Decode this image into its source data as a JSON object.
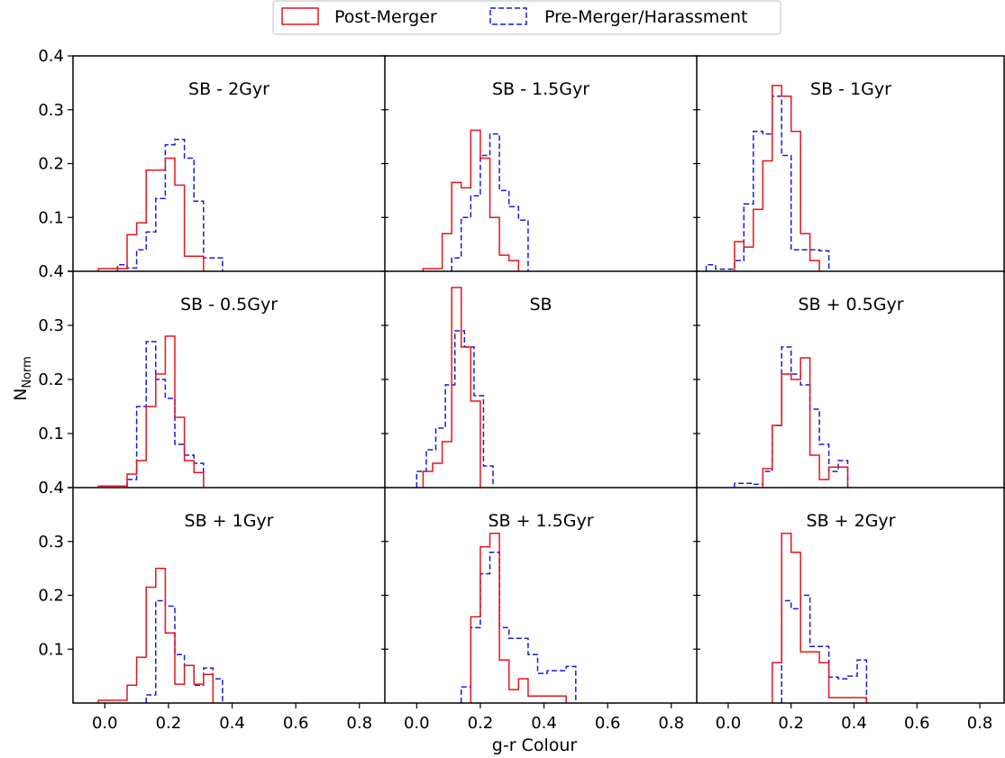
{
  "figure": {
    "xlabel": "g-r Colour",
    "ylabel_main": "N",
    "ylabel_sub": "Norm"
  },
  "legend": {
    "entries": [
      {
        "label": "Post-Merger",
        "color": "#e8141c",
        "style": "solid"
      },
      {
        "label": "Pre-Merger/Harassment",
        "color": "#1a1adc",
        "style": "dashed"
      }
    ]
  },
  "chart_data": {
    "type": "histogram-grid",
    "rows": 3,
    "cols": 3,
    "xlim": [
      -0.1,
      0.88
    ],
    "ylim": [
      0.0,
      0.4
    ],
    "xticks": [
      0.0,
      0.2,
      0.4,
      0.6,
      0.8
    ],
    "xtick_labels": [
      "0.0",
      "0.2",
      "0.4",
      "0.6",
      "0.8"
    ],
    "yticks": [
      0.1,
      0.2,
      0.3,
      0.4
    ],
    "ytick_labels_top_row": [
      "0.1",
      "0.2",
      "0.3",
      "0.4"
    ],
    "ytick_labels_lower_rows": [
      "0.1",
      "0.2",
      "0.3",
      "0.4"
    ],
    "ytick_label_at_zero": "0.4",
    "bin_width": 0.03,
    "panels": [
      {
        "title": "SB - 2Gyr",
        "post": {
          "start": -0.02,
          "values": [
            0.005,
            0.005,
            0.005,
            0.068,
            0.09,
            0.188,
            0.188,
            0.21,
            0.16,
            0.028,
            0.028
          ]
        },
        "pre": {
          "start": 0.04,
          "values": [
            0.012,
            0.006,
            0.04,
            0.073,
            0.135,
            0.235,
            0.245,
            0.21,
            0.13,
            0.025,
            0.025
          ]
        }
      },
      {
        "title": "SB - 1.5Gyr",
        "post": {
          "start": 0.02,
          "values": [
            0.005,
            0.005,
            0.07,
            0.165,
            0.155,
            0.262,
            0.21,
            0.1,
            0.03,
            0.02
          ]
        },
        "pre": {
          "start": 0.11,
          "values": [
            0.025,
            0.1,
            0.14,
            0.215,
            0.255,
            0.15,
            0.12,
            0.095
          ]
        }
      },
      {
        "title": "SB - 1Gyr",
        "post": {
          "start": 0.02,
          "values": [
            0.055,
            0.045,
            0.115,
            0.205,
            0.345,
            0.325,
            0.26,
            0.07,
            0.02
          ]
        },
        "pre": {
          "start": -0.07,
          "values": [
            0.012,
            0.004,
            0.004,
            0.02,
            0.125,
            0.26,
            0.255,
            0.325,
            0.215,
            0.04,
            0.04,
            0.04,
            0.038
          ]
        }
      },
      {
        "title": "SB - 0.5Gyr",
        "post": {
          "start": -0.02,
          "values": [
            0.003,
            0.003,
            0.003,
            0.025,
            0.05,
            0.15,
            0.21,
            0.28,
            0.13,
            0.05,
            0.028
          ]
        },
        "pre": {
          "start": 0.07,
          "values": [
            0.015,
            0.15,
            0.27,
            0.2,
            0.165,
            0.08,
            0.06,
            0.045
          ]
        }
      },
      {
        "title": "SB",
        "post": {
          "start": 0.02,
          "values": [
            0.03,
            0.045,
            0.085,
            0.37,
            0.26,
            0.16
          ]
        },
        "pre": {
          "start": 0.0,
          "values": [
            0.03,
            0.07,
            0.11,
            0.19,
            0.29,
            0.26,
            0.17,
            0.04
          ]
        }
      },
      {
        "title": "SB + 0.5Gyr",
        "post": {
          "start": 0.11,
          "values": [
            0.035,
            0.115,
            0.21,
            0.2,
            0.24,
            0.06,
            0.015,
            0.038,
            0.038
          ]
        },
        "pre": {
          "start": 0.02,
          "values": [
            0.008,
            0.008,
            0.006,
            0.03,
            0.115,
            0.26,
            0.21,
            0.19,
            0.145,
            0.08,
            0.03,
            0.05
          ]
        }
      },
      {
        "title": "SB + 1Gyr",
        "post": {
          "start": -0.02,
          "values": [
            0.005,
            0.005,
            0.005,
            0.033,
            0.085,
            0.215,
            0.25,
            0.13,
            0.035,
            0.07,
            0.035,
            0.053
          ]
        },
        "pre": {
          "start": 0.13,
          "values": [
            0.015,
            0.19,
            0.18,
            0.09,
            0.07,
            0.033,
            0.065,
            0.045
          ]
        }
      },
      {
        "title": "SB + 1.5Gyr",
        "post": {
          "start": 0.17,
          "values": [
            0.16,
            0.29,
            0.315,
            0.08,
            0.025,
            0.045,
            0.013,
            0.013,
            0.013,
            0.013
          ]
        },
        "pre": {
          "start": 0.14,
          "values": [
            0.03,
            0.14,
            0.24,
            0.28,
            0.14,
            0.12,
            0.12,
            0.09,
            0.055,
            0.06,
            0.06,
            0.068
          ]
        }
      },
      {
        "title": "SB + 2Gyr",
        "post": {
          "start": 0.14,
          "values": [
            0.075,
            0.315,
            0.28,
            0.095,
            0.095,
            0.075,
            0.01,
            0.01,
            0.01,
            0.01
          ]
        },
        "pre": {
          "start": 0.17,
          "values": [
            0.19,
            0.175,
            0.2,
            0.105,
            0.105,
            0.048,
            0.045,
            0.05,
            0.08
          ]
        }
      }
    ]
  }
}
